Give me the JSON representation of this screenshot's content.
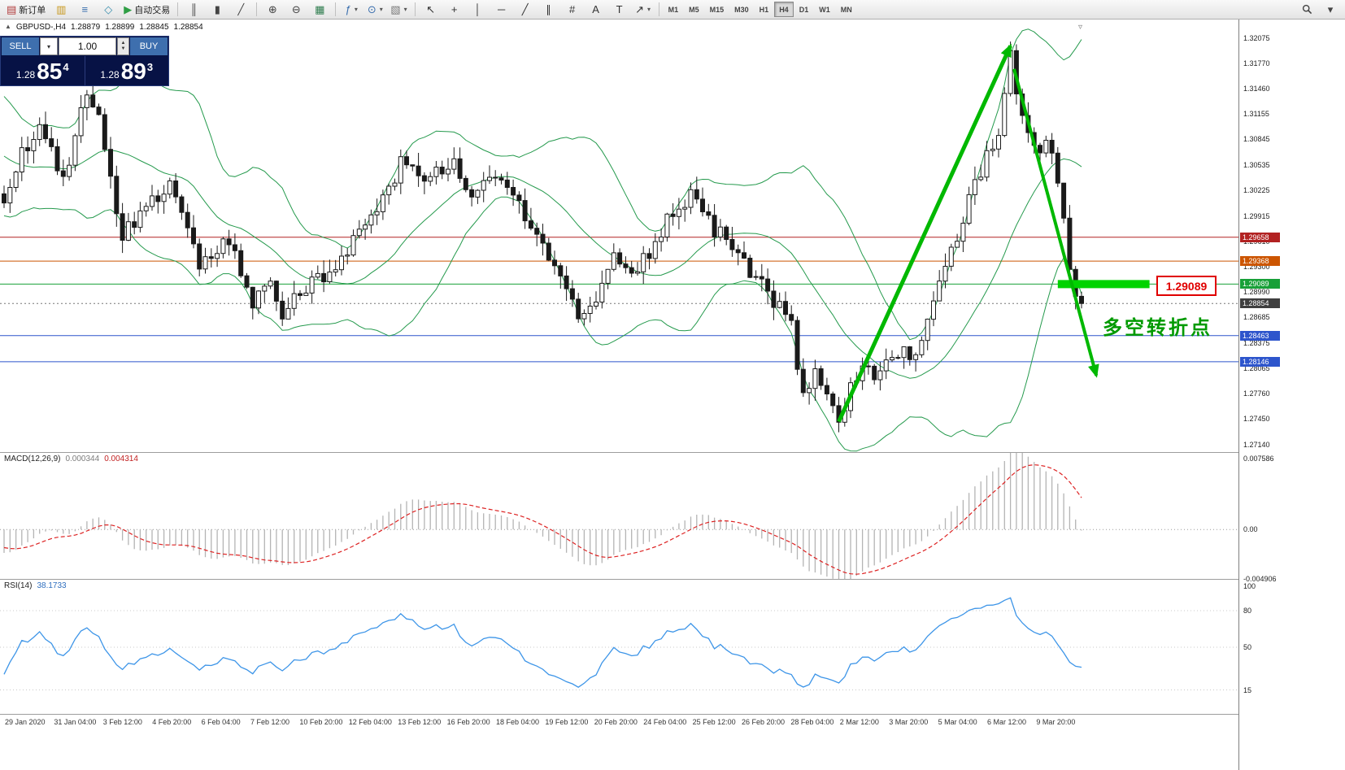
{
  "toolbar": {
    "groups": [
      {
        "name": "system",
        "items": [
          {
            "name": "new-order-button",
            "icon": "new-order-icon",
            "glyph": "▤",
            "color": "#b23b3b",
            "label": "新订单"
          },
          {
            "name": "chart-windows-button",
            "icon": "chart-windows-icon",
            "glyph": "▥",
            "color": "#c8981e"
          },
          {
            "name": "market-watch-button",
            "icon": "market-watch-icon",
            "glyph": "≡",
            "color": "#3a6fae"
          },
          {
            "name": "navigator-button",
            "icon": "navigator-icon",
            "glyph": "◇",
            "color": "#3a8fae"
          },
          {
            "name": "autotrading-button",
            "icon": "autotrading-icon",
            "glyph": "▶",
            "color": "#2f9e44",
            "label": "自动交易"
          }
        ]
      },
      {
        "name": "chart-type",
        "items": [
          {
            "name": "bar-chart-button",
            "icon": "bar-chart-icon",
            "glyph": "║",
            "color": "#444444"
          },
          {
            "name": "candlestick-chart-button",
            "icon": "candlestick-chart-icon",
            "glyph": "▮",
            "color": "#444444"
          },
          {
            "name": "line-chart-button",
            "icon": "line-chart-icon",
            "glyph": "╱",
            "color": "#444444"
          }
        ]
      },
      {
        "name": "zoom",
        "items": [
          {
            "name": "zoom-in-button",
            "icon": "zoom-in-icon",
            "glyph": "⊕",
            "color": "#444444"
          },
          {
            "name": "zoom-out-button",
            "icon": "zoom-out-icon",
            "glyph": "⊖",
            "color": "#444444"
          },
          {
            "name": "grid-button",
            "icon": "grid-icon",
            "glyph": "▦",
            "color": "#2f7d4f"
          }
        ]
      },
      {
        "name": "tools",
        "items": [
          {
            "name": "indicators-button",
            "icon": "indicators-icon",
            "glyph": "ƒ",
            "color": "#3a6fae",
            "caret": true
          },
          {
            "name": "periods-button",
            "icon": "periods-icon",
            "glyph": "⊙",
            "color": "#3a6fae",
            "caret": true
          },
          {
            "name": "templates-button",
            "icon": "templates-icon",
            "glyph": "▧",
            "color": "#777777",
            "caret": true
          }
        ]
      },
      {
        "name": "objects",
        "items": [
          {
            "name": "cursor-button",
            "icon": "cursor-icon",
            "glyph": "↖",
            "color": "#333333"
          },
          {
            "name": "crosshair-button",
            "icon": "crosshair-icon",
            "glyph": "+",
            "color": "#333333"
          },
          {
            "name": "vertical-line-button",
            "icon": "vertical-line-icon",
            "glyph": "│",
            "color": "#333333"
          },
          {
            "name": "horizontal-line-button",
            "icon": "horizontal-line-icon",
            "glyph": "─",
            "color": "#333333"
          },
          {
            "name": "trendline-button",
            "icon": "trendline-icon",
            "glyph": "╱",
            "color": "#333333"
          },
          {
            "name": "channel-button",
            "icon": "channel-icon",
            "glyph": "∥",
            "color": "#333333"
          },
          {
            "name": "fibonacci-button",
            "icon": "fibonacci-icon",
            "glyph": "#",
            "color": "#333333"
          },
          {
            "name": "text-button",
            "icon": "text-icon",
            "glyph": "A",
            "color": "#333333"
          },
          {
            "name": "text-label-button",
            "icon": "text-label-icon",
            "glyph": "T",
            "color": "#333333"
          },
          {
            "name": "arrows-button",
            "icon": "arrows-icon",
            "glyph": "↗",
            "color": "#333333",
            "caret": true
          }
        ]
      }
    ],
    "timeframes": [
      "M1",
      "M5",
      "M15",
      "M30",
      "H1",
      "H4",
      "D1",
      "W1",
      "MN"
    ],
    "active_timeframe": "H4",
    "right_items": [
      {
        "name": "search-button",
        "icon": "search-icon"
      },
      {
        "name": "quick-menu-button",
        "icon": "chevron-down-icon"
      }
    ]
  },
  "chart": {
    "ohlc_header": {
      "marker": "▲",
      "symbol": "GBPUSD-,H4",
      "open": "1.28879",
      "high": "1.28899",
      "low": "1.28845",
      "close": "1.28854"
    },
    "trade_panel": {
      "sell": {
        "label": "SELL",
        "price_main": "1.28",
        "price_pips": "85",
        "price_pipette": "4"
      },
      "buy": {
        "label": "BUY",
        "price_main": "1.28",
        "price_pips": "89",
        "price_pipette": "3"
      },
      "volume": "1.00"
    },
    "shift_marker": "▿"
  },
  "chart_data": {
    "type": "candlestick",
    "symbol": "GBPUSD",
    "period": "H4",
    "bars": 183,
    "y_axis": {
      "min": 1.2705,
      "max": 1.323,
      "tick_labels": [
        "1.32075",
        "1.31770",
        "1.31460",
        "1.31155",
        "1.30845",
        "1.30535",
        "1.30225",
        "1.29915",
        "1.29610",
        "1.29300",
        "1.28990",
        "1.28685",
        "1.28375",
        "1.28065",
        "1.27760",
        "1.27450",
        "1.27140"
      ]
    },
    "x_axis_labels": [
      "29 Jan 2020",
      "31 Jan 04:00",
      "3 Feb 12:00",
      "4 Feb 20:00",
      "6 Feb 04:00",
      "7 Feb 12:00",
      "10 Feb 20:00",
      "12 Feb 04:00",
      "13 Feb 12:00",
      "16 Feb 20:00",
      "18 Feb 04:00",
      "19 Feb 12:00",
      "20 Feb 20:00",
      "24 Feb 04:00",
      "25 Feb 12:00",
      "26 Feb 20:00",
      "28 Feb 04:00",
      "2 Mar 12:00",
      "3 Mar 20:00",
      "5 Mar 04:00",
      "6 Mar 12:00",
      "9 Mar 20:00"
    ],
    "price_keypoints": [
      [
        -30,
        1.3095
      ],
      [
        -20,
        1.314
      ],
      [
        -10,
        1.306
      ],
      [
        0,
        1.3015
      ],
      [
        3,
        1.3065
      ],
      [
        6,
        1.31
      ],
      [
        10,
        1.303
      ],
      [
        14,
        1.3145
      ],
      [
        16,
        1.311
      ],
      [
        20,
        1.2968
      ],
      [
        24,
        1.3
      ],
      [
        28,
        1.3036
      ],
      [
        33,
        1.2925
      ],
      [
        38,
        1.296
      ],
      [
        42,
        1.2884
      ],
      [
        45,
        1.291
      ],
      [
        47,
        1.2874
      ],
      [
        53,
        1.2914
      ],
      [
        59,
        1.2958
      ],
      [
        63,
        1.299
      ],
      [
        67,
        1.3058
      ],
      [
        71,
        1.3038
      ],
      [
        76,
        1.3052
      ],
      [
        78,
        1.3014
      ],
      [
        83,
        1.3045
      ],
      [
        87,
        1.3
      ],
      [
        90,
        1.2968
      ],
      [
        93,
        1.2928
      ],
      [
        97,
        1.2874
      ],
      [
        100,
        1.288
      ],
      [
        103,
        1.2946
      ],
      [
        106,
        1.293
      ],
      [
        108,
        1.2938
      ],
      [
        112,
        1.2985
      ],
      [
        114,
        1.3006
      ],
      [
        116,
        1.3018
      ],
      [
        119,
        1.2985
      ],
      [
        121,
        1.2968
      ],
      [
        124,
        1.295
      ],
      [
        126,
        1.2928
      ],
      [
        130,
        1.2888
      ],
      [
        133,
        1.2855
      ],
      [
        135,
        1.2772
      ],
      [
        137,
        1.28
      ],
      [
        139,
        1.2775
      ],
      [
        141,
        1.2742
      ],
      [
        143,
        1.2785
      ],
      [
        145,
        1.281
      ],
      [
        147,
        1.2795
      ],
      [
        149,
        1.2806
      ],
      [
        152,
        1.283
      ],
      [
        154,
        1.2818
      ],
      [
        156,
        1.287
      ],
      [
        158,
        1.2905
      ],
      [
        160,
        1.2958
      ],
      [
        162,
        1.2985
      ],
      [
        164,
        1.3028
      ],
      [
        166,
        1.306
      ],
      [
        168,
        1.3092
      ],
      [
        170,
        1.319
      ],
      [
        171,
        1.314
      ],
      [
        172,
        1.3116
      ],
      [
        173,
        1.3085
      ],
      [
        174,
        1.3076
      ],
      [
        175,
        1.306
      ],
      [
        176,
        1.3086
      ],
      [
        177,
        1.306
      ],
      [
        178,
        1.3035
      ],
      [
        179,
        1.299
      ],
      [
        180,
        1.2928
      ],
      [
        181,
        1.2895
      ],
      [
        182,
        1.28854
      ]
    ],
    "hlines": [
      {
        "price": 1.29658,
        "label": "1.29658",
        "color": "#b22222"
      },
      {
        "price": 1.29368,
        "label": "1.29368",
        "color": "#cc5500"
      },
      {
        "price": 1.29089,
        "label": "1.29089",
        "color": "#18a038"
      },
      {
        "price": 1.28463,
        "label": "1.28463",
        "color": "#2d55cc"
      },
      {
        "price": 1.28146,
        "label": "1.28146",
        "color": "#2d55cc"
      }
    ],
    "current_price": {
      "price": 1.28854,
      "label": "1.28854",
      "color": "#3f3f3f"
    },
    "bollinger": {
      "period": 20,
      "deviation": 2,
      "color": "#259a4d"
    },
    "indicators": {
      "macd": {
        "label": "MACD(12,26,9)",
        "values": [
          "0.000344",
          "0.004314"
        ],
        "axis_labels": [
          "0.007586",
          "0.00",
          "-0.004906"
        ],
        "scale_max": 0.0076,
        "scale_min": -0.0049,
        "histogram_color": "#b4b4b4",
        "signal_color": "#dd2222"
      },
      "rsi": {
        "label": "RSI(14)",
        "value": "38.1733",
        "axis_labels": [
          "100",
          "80",
          "50",
          "15"
        ],
        "level_lines": [
          80,
          50,
          15
        ],
        "line_color": "#3d95e8"
      }
    },
    "annotations": {
      "up_arrow": {
        "from_bar": 141,
        "from_price": 1.2742,
        "to_bar": 170,
        "to_price": 1.3198
      },
      "down_arrow": {
        "from_bar": 170.6,
        "from_price": 1.317,
        "to_bar": 184.5,
        "to_price": 1.2798
      },
      "arrow_color": "#00b800",
      "highlight_bar": {
        "from_bar": 178,
        "to_bar": 193.5,
        "price": 1.29089,
        "color": "#00d300"
      },
      "price_label": "1.29089",
      "note_text": "多空转折点",
      "note_color": "#009a00"
    }
  }
}
